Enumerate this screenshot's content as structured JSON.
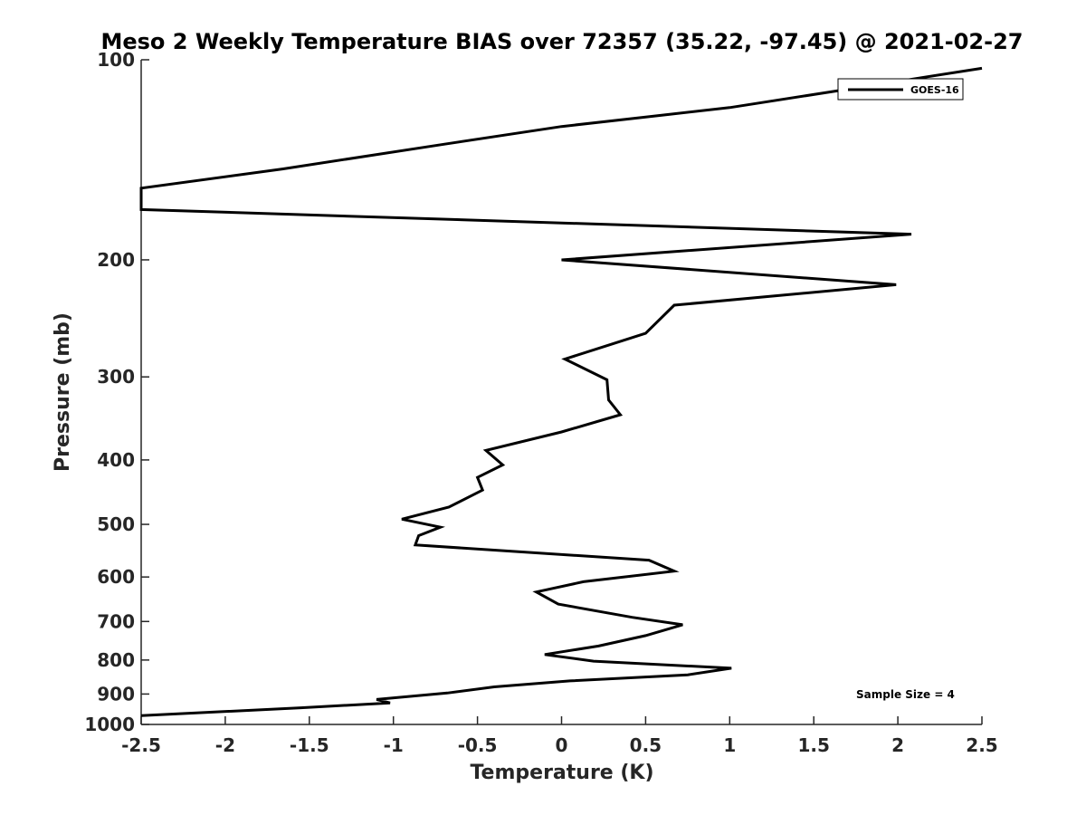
{
  "chart_data": {
    "type": "line",
    "title": "Meso 2 Weekly Temperature BIAS over 72357 (35.22, -97.45) @ 2021-02-27",
    "xlabel": "Temperature (K)",
    "ylabel": "Pressure (mb)",
    "xlim": [
      -2.5,
      2.5
    ],
    "ylim": [
      100,
      1000
    ],
    "y_scale": "log",
    "y_reversed": true,
    "grid": false,
    "legend_position": "top-right",
    "x_ticks": [
      "-2.5",
      "-2",
      "-1.5",
      "-1",
      "-0.5",
      "0",
      "0.5",
      "1",
      "1.5",
      "2",
      "2.5"
    ],
    "x_tick_values": [
      -2.5,
      -2,
      -1.5,
      -1,
      -0.5,
      0,
      0.5,
      1,
      1.5,
      2,
      2.5
    ],
    "y_ticks": [
      "100",
      "200",
      "300",
      "400",
      "500",
      "600",
      "700",
      "800",
      "900",
      "1000"
    ],
    "y_tick_values": [
      100,
      200,
      300,
      400,
      500,
      600,
      700,
      800,
      900,
      1000
    ],
    "series": [
      {
        "name": "GOES-16",
        "color": "#000000",
        "points": [
          {
            "x": 2.5,
            "y": 103
          },
          {
            "x": 1.0,
            "y": 118
          },
          {
            "x": 0.0,
            "y": 126
          },
          {
            "x": -0.7,
            "y": 134
          },
          {
            "x": -1.66,
            "y": 146
          },
          {
            "x": -2.5,
            "y": 156
          },
          {
            "x": -2.5,
            "y": 168
          },
          {
            "x": 0.0,
            "y": 176
          },
          {
            "x": 2.08,
            "y": 183
          },
          {
            "x": 0.0,
            "y": 200
          },
          {
            "x": 1.99,
            "y": 218
          },
          {
            "x": 0.67,
            "y": 234
          },
          {
            "x": 0.5,
            "y": 258
          },
          {
            "x": 0.02,
            "y": 282
          },
          {
            "x": 0.27,
            "y": 303
          },
          {
            "x": 0.28,
            "y": 325
          },
          {
            "x": 0.35,
            "y": 342
          },
          {
            "x": 0.0,
            "y": 363
          },
          {
            "x": -0.45,
            "y": 387
          },
          {
            "x": -0.35,
            "y": 407
          },
          {
            "x": -0.5,
            "y": 425
          },
          {
            "x": -0.47,
            "y": 444
          },
          {
            "x": -0.67,
            "y": 471
          },
          {
            "x": -0.95,
            "y": 491
          },
          {
            "x": -0.72,
            "y": 505
          },
          {
            "x": -0.85,
            "y": 520
          },
          {
            "x": -0.87,
            "y": 537
          },
          {
            "x": 0.52,
            "y": 566
          },
          {
            "x": 0.67,
            "y": 588
          },
          {
            "x": 0.13,
            "y": 610
          },
          {
            "x": -0.15,
            "y": 632
          },
          {
            "x": -0.02,
            "y": 659
          },
          {
            "x": 0.42,
            "y": 690
          },
          {
            "x": 0.72,
            "y": 708
          },
          {
            "x": 0.5,
            "y": 735
          },
          {
            "x": 0.22,
            "y": 762
          },
          {
            "x": -0.1,
            "y": 785
          },
          {
            "x": 0.19,
            "y": 803
          },
          {
            "x": 1.01,
            "y": 823
          },
          {
            "x": 0.75,
            "y": 842
          },
          {
            "x": 0.05,
            "y": 860
          },
          {
            "x": -0.4,
            "y": 878
          },
          {
            "x": -0.68,
            "y": 897
          },
          {
            "x": -1.1,
            "y": 917
          },
          {
            "x": -1.02,
            "y": 928
          },
          {
            "x": -1.55,
            "y": 944
          },
          {
            "x": -2.5,
            "y": 970
          }
        ]
      }
    ],
    "annotations": [
      {
        "text": "Sample Size = 4",
        "position": "bottom-right"
      }
    ]
  }
}
